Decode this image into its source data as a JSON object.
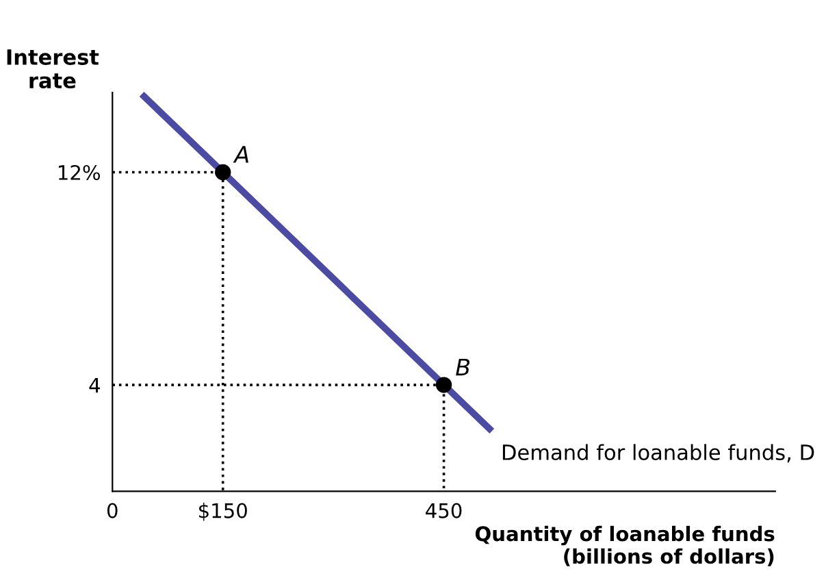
{
  "chart_data": {
    "type": "line",
    "ylabel": "Interest rate",
    "xlabel": "Quantity of loanable funds\n(billions of dollars)",
    "xlim": [
      0,
      900
    ],
    "ylim": [
      0,
      15
    ],
    "xticks": [
      {
        "value": 0,
        "label": "0"
      },
      {
        "value": 150,
        "label": "$150"
      },
      450
    ],
    "yticks": [
      {
        "value": 4,
        "label": "4"
      },
      {
        "value": 12,
        "label": "12%"
      }
    ],
    "grid": false,
    "legend": false,
    "series": [
      {
        "color": "#4b4ba3",
        "x": [
          43,
          150,
          450,
          512
        ],
        "values": [
          14.85,
          12,
          4,
          2.35
        ],
        "marker": "none",
        "line_style": "solid"
      },
      {
        "color": "#000000",
        "x": [
          0,
          150,
          150
        ],
        "values": [
          12,
          12,
          0
        ],
        "marker": "none",
        "line_style": "dotted"
      },
      {
        "color": "#000000",
        "x": [
          0,
          450,
          450
        ],
        "values": [
          4,
          4,
          0
        ],
        "marker": "none",
        "line_style": "dotted"
      },
      {
        "type": "scatter",
        "color": "#000000",
        "x": [
          150,
          450
        ],
        "values": [
          12,
          4
        ],
        "marker": "circle"
      }
    ],
    "annotations": [
      {
        "text": "A",
        "x": 150,
        "y": 12
      },
      {
        "text": "B",
        "x": 450,
        "y": 4
      },
      {
        "text": "Demand for loanable funds, D",
        "x": 512,
        "y": 2.35
      }
    ]
  }
}
